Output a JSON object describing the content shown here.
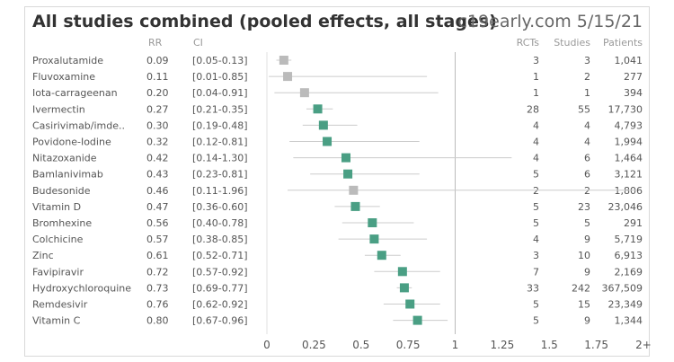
{
  "header": {
    "title": "All studies combined (pooled effects, all stages)",
    "brand": "c19early.com 5/15/21"
  },
  "columns": {
    "rr": "RR",
    "ci": "CI",
    "rcts": "RCTs",
    "studies": "Studies",
    "patients": "Patients"
  },
  "colors": {
    "significant": "#4a9f84",
    "not_significant": "#bbbbbb",
    "ci_line": "#cccccc",
    "ref_line": "#bbbbbb"
  },
  "chart_data": {
    "type": "forest",
    "x_ticks": [
      "0",
      "0.25",
      "0.5",
      "0.75",
      "1",
      "1.25",
      "1.5",
      "1.75",
      "2+"
    ],
    "xlim": [
      0,
      2
    ],
    "reference_line": 1,
    "rows": [
      {
        "name": "Proxalutamide",
        "rr": 0.09,
        "rr_label": "0.09",
        "ci": "[0.05-0.13]",
        "lo": 0.05,
        "hi": 0.13,
        "rcts": "3",
        "studies": "3",
        "patients": "1,041",
        "significant": false
      },
      {
        "name": "Fluvoxamine",
        "rr": 0.11,
        "rr_label": "0.11",
        "ci": "[0.01-0.85]",
        "lo": 0.01,
        "hi": 0.85,
        "rcts": "1",
        "studies": "2",
        "patients": "277",
        "significant": false
      },
      {
        "name": "Iota-carrageenan",
        "rr": 0.2,
        "rr_label": "0.20",
        "ci": "[0.04-0.91]",
        "lo": 0.04,
        "hi": 0.91,
        "rcts": "1",
        "studies": "1",
        "patients": "394",
        "significant": false
      },
      {
        "name": "Ivermectin",
        "rr": 0.27,
        "rr_label": "0.27",
        "ci": "[0.21-0.35]",
        "lo": 0.21,
        "hi": 0.35,
        "rcts": "28",
        "studies": "55",
        "patients": "17,730",
        "significant": true
      },
      {
        "name": "Casirivimab/imde..",
        "rr": 0.3,
        "rr_label": "0.30",
        "ci": "[0.19-0.48]",
        "lo": 0.19,
        "hi": 0.48,
        "rcts": "4",
        "studies": "4",
        "patients": "4,793",
        "significant": true
      },
      {
        "name": "Povidone-Iodine",
        "rr": 0.32,
        "rr_label": "0.32",
        "ci": "[0.12-0.81]",
        "lo": 0.12,
        "hi": 0.81,
        "rcts": "4",
        "studies": "4",
        "patients": "1,994",
        "significant": true
      },
      {
        "name": "Nitazoxanide",
        "rr": 0.42,
        "rr_label": "0.42",
        "ci": "[0.14-1.30]",
        "lo": 0.14,
        "hi": 1.3,
        "rcts": "4",
        "studies": "6",
        "patients": "1,464",
        "significant": true
      },
      {
        "name": "Bamlanivimab",
        "rr": 0.43,
        "rr_label": "0.43",
        "ci": "[0.23-0.81]",
        "lo": 0.23,
        "hi": 0.81,
        "rcts": "5",
        "studies": "6",
        "patients": "3,121",
        "significant": true
      },
      {
        "name": "Budesonide",
        "rr": 0.46,
        "rr_label": "0.46",
        "ci": "[0.11-1.96]",
        "lo": 0.11,
        "hi": 1.96,
        "rcts": "2",
        "studies": "2",
        "patients": "1,806",
        "significant": false
      },
      {
        "name": "Vitamin D",
        "rr": 0.47,
        "rr_label": "0.47",
        "ci": "[0.36-0.60]",
        "lo": 0.36,
        "hi": 0.6,
        "rcts": "5",
        "studies": "23",
        "patients": "23,046",
        "significant": true
      },
      {
        "name": "Bromhexine",
        "rr": 0.56,
        "rr_label": "0.56",
        "ci": "[0.40-0.78]",
        "lo": 0.4,
        "hi": 0.78,
        "rcts": "5",
        "studies": "5",
        "patients": "291",
        "significant": true
      },
      {
        "name": "Colchicine",
        "rr": 0.57,
        "rr_label": "0.57",
        "ci": "[0.38-0.85]",
        "lo": 0.38,
        "hi": 0.85,
        "rcts": "4",
        "studies": "9",
        "patients": "5,719",
        "significant": true
      },
      {
        "name": "Zinc",
        "rr": 0.61,
        "rr_label": "0.61",
        "ci": "[0.52-0.71]",
        "lo": 0.52,
        "hi": 0.71,
        "rcts": "3",
        "studies": "10",
        "patients": "6,913",
        "significant": true
      },
      {
        "name": "Favipiravir",
        "rr": 0.72,
        "rr_label": "0.72",
        "ci": "[0.57-0.92]",
        "lo": 0.57,
        "hi": 0.92,
        "rcts": "7",
        "studies": "9",
        "patients": "2,169",
        "significant": true
      },
      {
        "name": "Hydroxychloroquine",
        "rr": 0.73,
        "rr_label": "0.73",
        "ci": "[0.69-0.77]",
        "lo": 0.69,
        "hi": 0.77,
        "rcts": "33",
        "studies": "242",
        "patients": "367,509",
        "significant": true
      },
      {
        "name": "Remdesivir",
        "rr": 0.76,
        "rr_label": "0.76",
        "ci": "[0.62-0.92]",
        "lo": 0.62,
        "hi": 0.92,
        "rcts": "5",
        "studies": "15",
        "patients": "23,349",
        "significant": true
      },
      {
        "name": "Vitamin C",
        "rr": 0.8,
        "rr_label": "0.80",
        "ci": "[0.67-0.96]",
        "lo": 0.67,
        "hi": 0.96,
        "rcts": "5",
        "studies": "9",
        "patients": "1,344",
        "significant": true
      }
    ]
  }
}
